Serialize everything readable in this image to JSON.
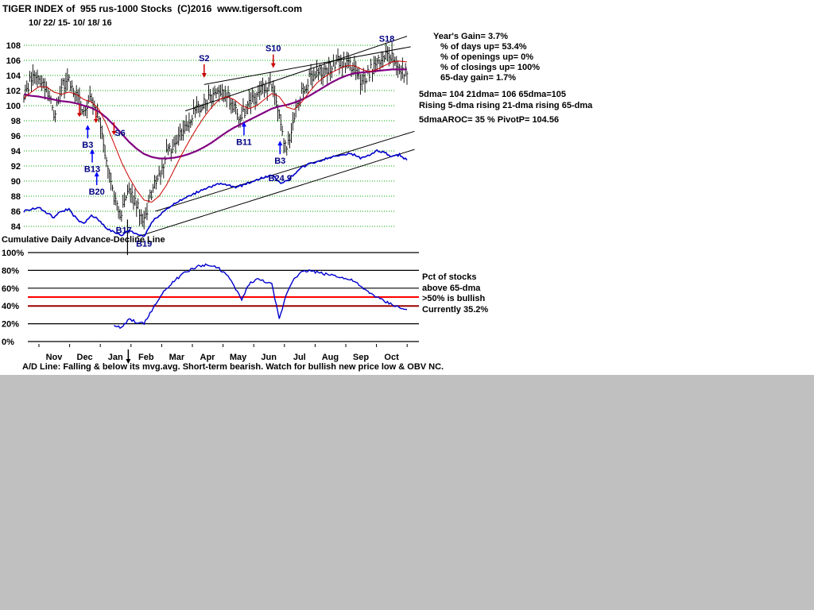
{
  "header": {
    "title": "TIGER INDEX of  955 rus-1000 Stocks  (C)2016  www.tigersoft.com",
    "date_range": "10/ 22/ 15- 10/ 18/ 16"
  },
  "stats": {
    "lines": [
      "Year's Gain= 3.7%",
      "% of days up= 53.4%",
      "% of openings up= 0%",
      "% of closings up= 100%",
      "65-day gain= 1.7%"
    ],
    "ma_line1": "5dma= 104 21dma= 106 65dma=105",
    "ma_line2": "Rising 5-dma  rising 21-dma  rising 65-dma",
    "ma_line3": "5dmaAROC= 35 %  PivotP= 104.56"
  },
  "ad_label": "Cumulative Daily Advance-Decline Line",
  "lower_right": [
    "Pct of stocks",
    "above 65-dma",
    ">50% is bullish",
    "Currently  35.2%"
  ],
  "footer": "A/D Line: Falling & below its mvg.avg. Short-term bearish. Watch for bullish new price low & OBV NC.",
  "colors": {
    "ad_line": "#0000cc",
    "ma21": "#cc0000",
    "ma65": "#800080",
    "bullish_threshold_line": "#ff0000",
    "secondary_threshold_line": "#990000",
    "grid": "#00aa00",
    "window_bg": "#c0c0c0",
    "chart_bg": "#ffffff"
  },
  "chart_data": {
    "type": "candlestick",
    "title": "TIGER INDEX of 955 rus-1000 Stocks",
    "date_range": "10/22/15 - 10/18/16",
    "months": [
      "Nov",
      "Dec",
      "Jan",
      "Feb",
      "Mar",
      "Apr",
      "May",
      "Jun",
      "Jul",
      "Aug",
      "Sep",
      "Oct"
    ],
    "price_panel": {
      "ylim": [
        83,
        109
      ],
      "yticks": [
        84,
        86,
        88,
        90,
        92,
        94,
        96,
        98,
        100,
        102,
        104,
        106,
        108
      ],
      "weekly_close": [
        101.5,
        103.5,
        104.0,
        102.0,
        99.0,
        102.5,
        103.5,
        101.0,
        99.5,
        101.5,
        97.5,
        93.0,
        88.0,
        85.5,
        89.0,
        87.0,
        84.8,
        88.5,
        91.0,
        93.5,
        95.0,
        96.5,
        98.0,
        99.5,
        100.5,
        101.0,
        102.0,
        101.5,
        99.5,
        98.5,
        100.0,
        101.5,
        102.5,
        103.0,
        99.0,
        93.5,
        99.0,
        102.0,
        103.5,
        104.0,
        104.5,
        105.0,
        106.0,
        105.5,
        105.0,
        103.0,
        104.5,
        105.5,
        107.0,
        106.5,
        105.0,
        104.5
      ],
      "adline": [
        86.0,
        86.3,
        86.5,
        85.8,
        85.2,
        86.0,
        86.3,
        85.0,
        84.3,
        85.5,
        84.8,
        83.8,
        83.2,
        82.8,
        83.5,
        83.0,
        82.7,
        84.5,
        85.5,
        86.3,
        87.0,
        87.5,
        88.0,
        88.5,
        89.0,
        89.3,
        89.6,
        89.5,
        89.2,
        89.4,
        89.8,
        90.2,
        90.5,
        90.8,
        89.8,
        90.0,
        91.0,
        91.8,
        92.3,
        92.6,
        92.9,
        93.2,
        93.5,
        93.6,
        93.5,
        93.0,
        93.5,
        94.0,
        93.8,
        93.2,
        93.5,
        92.8
      ],
      "ma21": [
        101.0,
        101.8,
        102.5,
        102.5,
        101.8,
        101.5,
        101.8,
        101.5,
        100.8,
        100.5,
        99.5,
        97.5,
        95.0,
        92.5,
        90.5,
        88.8,
        87.5,
        87.2,
        88.0,
        89.5,
        91.5,
        93.5,
        95.3,
        97.0,
        98.5,
        99.8,
        100.8,
        101.2,
        100.8,
        100.0,
        99.6,
        100.0,
        100.8,
        101.6,
        101.2,
        99.8,
        99.5,
        100.5,
        101.8,
        103.0,
        103.8,
        104.4,
        104.9,
        105.3,
        105.3,
        104.8,
        104.5,
        104.8,
        105.3,
        105.8,
        105.9,
        105.8
      ],
      "ma65": [
        101.5,
        101.3,
        101.2,
        101.0,
        100.8,
        100.6,
        100.5,
        100.3,
        100.0,
        99.7,
        99.2,
        98.4,
        97.4,
        96.3,
        95.2,
        94.3,
        93.6,
        93.2,
        93.0,
        93.0,
        93.1,
        93.3,
        93.6,
        94.0,
        94.5,
        95.1,
        95.8,
        96.5,
        97.1,
        97.6,
        98.1,
        98.6,
        99.1,
        99.6,
        99.9,
        100.1,
        100.4,
        100.8,
        101.3,
        101.9,
        102.5,
        103.1,
        103.6,
        104.0,
        104.3,
        104.4,
        104.5,
        104.6,
        104.7,
        104.8,
        104.8,
        104.8
      ],
      "signals": [
        {
          "label": "B3",
          "i": 8.5,
          "p": 94.4,
          "color": "#000080",
          "arrow": "up",
          "arrow_color": "#0000ff"
        },
        {
          "label": "B13",
          "i": 9.1,
          "p": 91.2,
          "color": "#000080",
          "arrow": "up",
          "arrow_color": "#0000ff"
        },
        {
          "label": "B20",
          "i": 9.7,
          "p": 88.2,
          "color": "#000080",
          "arrow": "up",
          "arrow_color": "#0000ff"
        },
        {
          "label": "S6",
          "i": 12.8,
          "p": 96.0,
          "color": "#000080"
        },
        {
          "label": "B17",
          "i": 13.3,
          "p": 83.1,
          "color": "#000080"
        },
        {
          "label": "B19",
          "i": 16.0,
          "p": 81.3,
          "color": "#000080"
        },
        {
          "label": "S2",
          "i": 24.0,
          "p": 105.9,
          "color": "#000080",
          "arrow": "down",
          "arrow_color": "#cc0000"
        },
        {
          "label": "B11",
          "i": 29.3,
          "p": 94.8,
          "color": "#000080",
          "arrow": "up",
          "arrow_color": "#0000ff"
        },
        {
          "label": "S10",
          "i": 33.2,
          "p": 107.2,
          "color": "#000080",
          "arrow": "down",
          "arrow_color": "#cc0000"
        },
        {
          "label": "B3",
          "i": 34.1,
          "p": 92.3,
          "color": "#000080",
          "arrow": "up",
          "arrow_color": "#0000ff"
        },
        {
          "label": "B24 9",
          "i": 34.1,
          "p": 90.0,
          "color": "#000080"
        },
        {
          "label": "S18",
          "i": 48.3,
          "p": 108.5,
          "color": "#000080"
        }
      ],
      "arrows": [
        {
          "i": 7.4,
          "p": 98.5
        },
        {
          "i": 9.6,
          "p": 97.7
        },
        {
          "i": 12.0,
          "p": 96.1
        }
      ],
      "trendlines": [
        {
          "i1": 15.0,
          "p1": 82.6,
          "i2": 52.0,
          "p2": 94.2
        },
        {
          "i1": 17.5,
          "p1": 86.0,
          "i2": 52.0,
          "p2": 96.6
        },
        {
          "i1": 21.5,
          "p1": 99.3,
          "i2": 51.0,
          "p2": 109.2
        },
        {
          "i1": 24.0,
          "p1": 102.8,
          "i2": 51.5,
          "p2": 107.8
        }
      ],
      "vline": {
        "i": 13.8,
        "p1": 84.9,
        "p2": 80.2
      }
    },
    "pct_panel": {
      "title": "Pct of stocks above 65-dma",
      "ylim": [
        0,
        100
      ],
      "yticks": [
        0,
        20,
        40,
        60,
        80,
        100
      ],
      "red_line": 50,
      "maroon_line": 40,
      "current_value": 35.2,
      "values": [
        null,
        null,
        null,
        null,
        null,
        null,
        null,
        null,
        null,
        null,
        null,
        null,
        18,
        15,
        25,
        22,
        20,
        35,
        48,
        60,
        68,
        75,
        80,
        84,
        86,
        85,
        82,
        75,
        62,
        47,
        65,
        70,
        68,
        64,
        25,
        55,
        72,
        78,
        80,
        78,
        76,
        75,
        73,
        70,
        68,
        60,
        55,
        50,
        45,
        42,
        38,
        35.2
      ]
    },
    "month_arrow": {
      "i": 13.9
    }
  }
}
